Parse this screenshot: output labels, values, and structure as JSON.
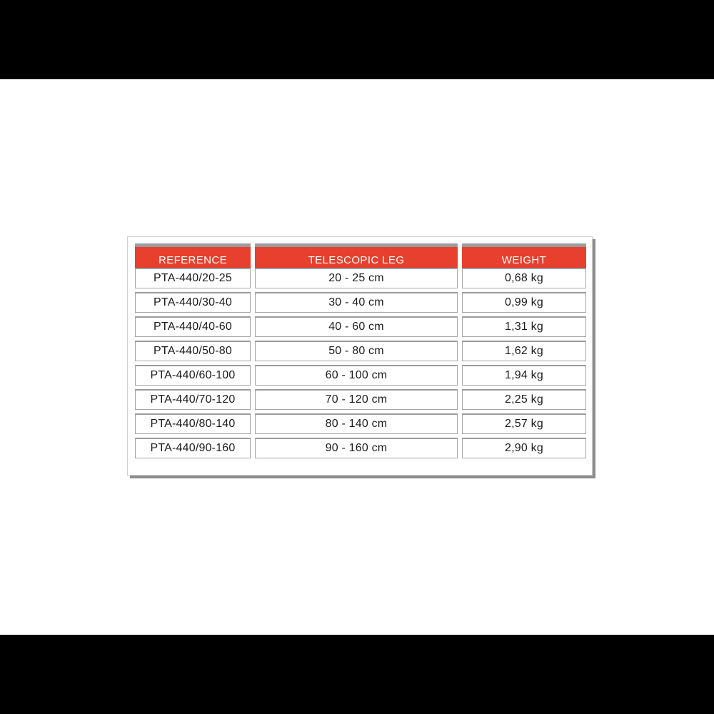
{
  "chart_data": {
    "type": "table",
    "columns": [
      "REFERENCE",
      "TELESCOPIC LEG",
      "WEIGHT"
    ],
    "rows": [
      [
        "PTA-440/20-25",
        "20 - 25 cm",
        "0,68 kg"
      ],
      [
        "PTA-440/30-40",
        "30 - 40 cm",
        "0,99 kg"
      ],
      [
        "PTA-440/40-60",
        "40 - 60 cm",
        "1,31 kg"
      ],
      [
        "PTA-440/50-80",
        "50 - 80 cm",
        "1,62 kg"
      ],
      [
        "PTA-440/60-100",
        "60 - 100 cm",
        "1,94 kg"
      ],
      [
        "PTA-440/70-120",
        "70 - 120 cm",
        "2,25 kg"
      ],
      [
        "PTA-440/80-140",
        "80 - 140 cm",
        "2,57 kg"
      ],
      [
        "PTA-440/90-160",
        "90 - 160 cm",
        "2,90 kg"
      ]
    ]
  },
  "colors": {
    "header_bg": "#e8402e",
    "header_bg_dark": "#d63524",
    "header_text": "#ffffff",
    "cell_border": "#a5a5a5",
    "cell_top_border": "#9b9b9d",
    "panel_border": "#cfcfcf",
    "panel_shadow": "#8d8d8d",
    "letterbox": "#000000",
    "text": "#1c1c1c"
  }
}
